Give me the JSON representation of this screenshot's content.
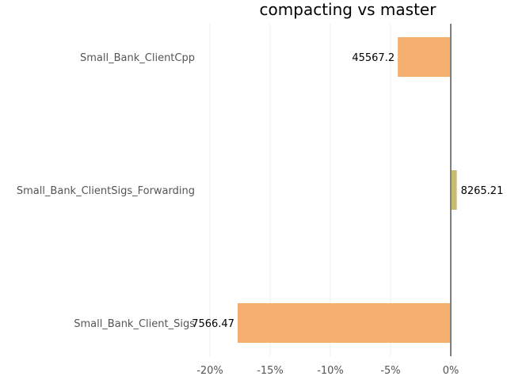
{
  "chart_data": {
    "type": "bar",
    "orientation": "horizontal",
    "title": "compacting vs master",
    "xlabel": "",
    "ylabel": "",
    "categories": [
      "Small_Bank_ClientCpp",
      "Small_Bank_ClientSigs_Forwarding",
      "Small_Bank_Client_Sigs"
    ],
    "values": [
      -4.4,
      0.5,
      -17.7
    ],
    "data_labels": [
      "45567.2",
      "8265.21",
      "7566.47"
    ],
    "bar_colors": [
      "#f4ae6e",
      "#c8bc72",
      "#f4ae6e"
    ],
    "xlim": [
      -20,
      0
    ],
    "xticks": [
      -20,
      -15,
      -10,
      -5,
      0
    ],
    "xtick_labels": [
      "-20%",
      "-15%",
      "-10%",
      "-5%",
      "0%"
    ],
    "grid": true,
    "zero_line_color": "#808080"
  }
}
